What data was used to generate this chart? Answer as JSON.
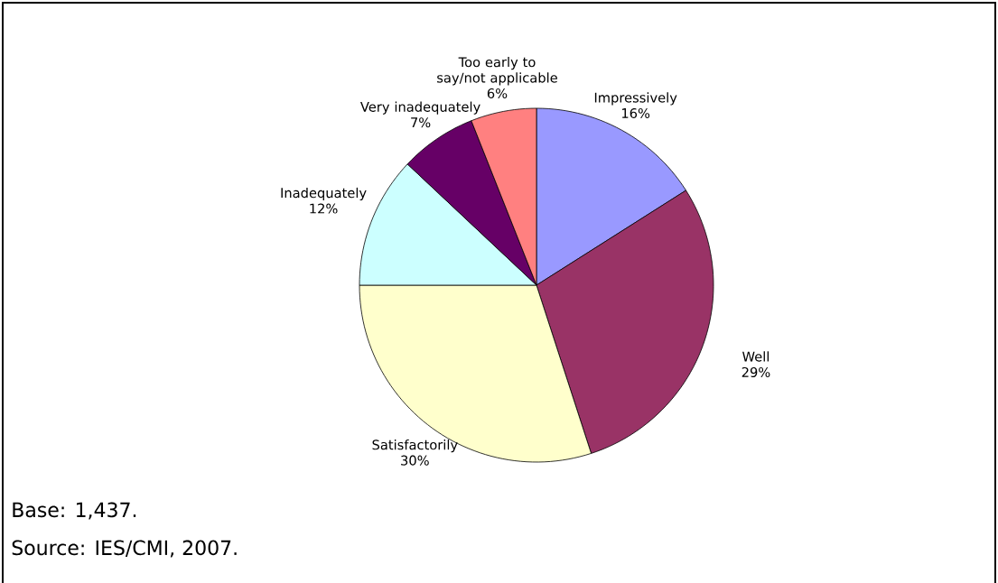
{
  "chart_data": {
    "type": "pie",
    "categories": [
      "Impressively",
      "Well",
      "Satisfactorily",
      "Inadequately",
      "Very inadequately",
      "Too early to say/not applicable"
    ],
    "values": [
      16,
      29,
      30,
      12,
      7,
      6
    ],
    "colors": [
      "#9999ff",
      "#993366",
      "#ffffcc",
      "#ccffff",
      "#660066",
      "#ff8080"
    ],
    "value_labels": [
      "16%",
      "29%",
      "30%",
      "12%",
      "7%",
      "6%"
    ],
    "annotations": [
      "Base: 1,437.",
      "Source: IES/CMI, 2007."
    ]
  }
}
